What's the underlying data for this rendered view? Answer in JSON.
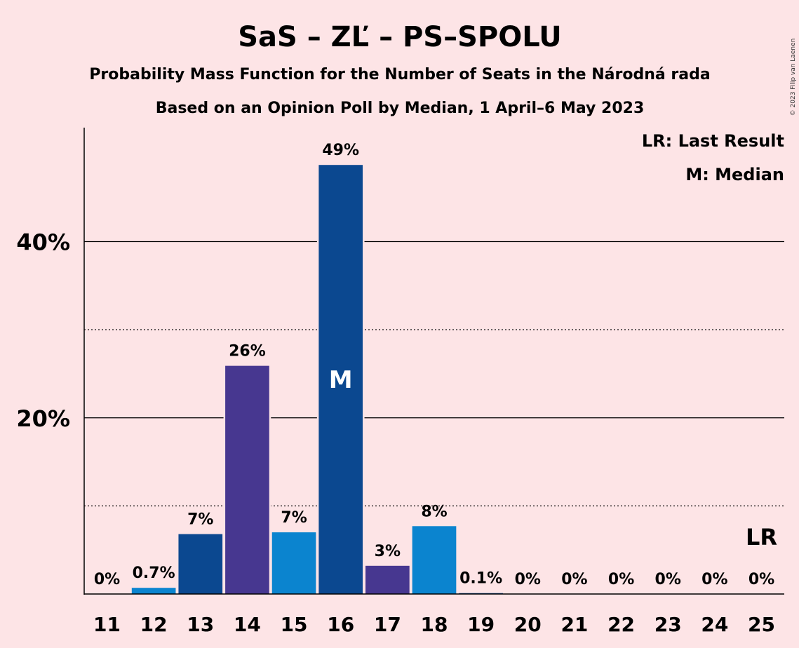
{
  "chart_data": {
    "type": "bar",
    "title": "SaS – ZĽ – PS–SPOLU",
    "subtitle": "Probability Mass Function for the Number of Seats in the Národná rada",
    "subtitle2": "Based on an Opinion Poll by Median, 1 April–6 May 2023",
    "copyright": "© 2023 Filip van Laenen",
    "categories": [
      "11",
      "12",
      "13",
      "14",
      "15",
      "16",
      "17",
      "18",
      "19",
      "20",
      "21",
      "22",
      "23",
      "24",
      "25"
    ],
    "values": [
      0,
      0.7,
      6.8,
      25.9,
      7.0,
      48.7,
      3.2,
      7.7,
      0.1,
      0,
      0,
      0,
      0,
      0,
      0
    ],
    "labels": [
      "0%",
      "0.7%",
      "7%",
      "26%",
      "7%",
      "49%",
      "3%",
      "8%",
      "0.1%",
      "0%",
      "0%",
      "0%",
      "0%",
      "0%",
      "0%"
    ],
    "colors": [
      "#0b4ea2",
      "#0b84cf",
      "#0b4890",
      "#473790",
      "#0b84cf",
      "#0b4890",
      "#473790",
      "#0b84cf",
      "#0b4ea2",
      "#0b4ea2",
      "#0b4ea2",
      "#0b4ea2",
      "#0b4ea2",
      "#0b4ea2",
      "#0b4ea2"
    ],
    "median_index": 5,
    "median_marker": "M",
    "last_result_index": 14,
    "last_result_marker": "LR",
    "ylim": [
      0,
      53
    ],
    "yticks_major": [
      20,
      40
    ],
    "ytick_labels": [
      "20%",
      "40%"
    ],
    "yticks_minor": [
      10,
      30
    ],
    "legend": {
      "placement": "top-right",
      "items": [
        "LR: Last Result",
        "M: Median"
      ]
    }
  }
}
